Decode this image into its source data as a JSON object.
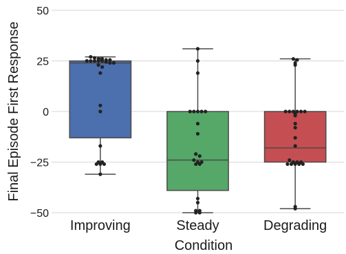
{
  "chart_data": {
    "type": "box",
    "title": "",
    "xlabel": "Condition",
    "ylabel": "Final Episode First Response",
    "categories": [
      "Improving",
      "Steady",
      "Degrading"
    ],
    "ylim": [
      -50,
      50
    ],
    "yticks": [
      50,
      25,
      0,
      -25,
      -50
    ],
    "ytick_labels": [
      "50",
      "25",
      "0",
      "−25",
      "−50"
    ],
    "grid": "horizontal",
    "legend": "none",
    "colors": {
      "Improving": "#4c6fad",
      "Steady": "#55a868",
      "Degrading": "#c44e52",
      "points": "#222222",
      "lines": "#4a4a4a",
      "grid": "#d6d6d6"
    },
    "boxes": [
      {
        "category": "Improving",
        "whislo": -31,
        "q1": -13,
        "med": 24,
        "q3": 25,
        "whishi": 27
      },
      {
        "category": "Steady",
        "whislo": -50,
        "q1": -39,
        "med": -24,
        "q3": 0,
        "whishi": 31
      },
      {
        "category": "Degrading",
        "whislo": -48,
        "q1": -25,
        "med": -18,
        "q3": 0,
        "whishi": 26
      }
    ],
    "points": [
      {
        "category": "Improving",
        "values": [
          27,
          26.5,
          26,
          26,
          25.5,
          25.5,
          25,
          25,
          25,
          25,
          25,
          24.5,
          24,
          24,
          23,
          22,
          19,
          3,
          0,
          -17,
          -25,
          -25,
          -26,
          -26,
          -26,
          -31
        ]
      },
      {
        "category": "Steady",
        "values": [
          31,
          25,
          19,
          0,
          0,
          0,
          0,
          0,
          -6,
          -11,
          -21,
          -22,
          -24,
          -25,
          -25,
          -26,
          -26,
          -43,
          -45,
          -49,
          -49,
          -50,
          -50
        ]
      },
      {
        "category": "Degrading",
        "values": [
          26,
          25.5,
          24,
          23,
          0,
          0,
          0,
          0,
          0,
          0,
          -1,
          -2,
          -6,
          -8,
          -13,
          -17,
          -24,
          -25,
          -25,
          -25,
          -26,
          -26,
          -26,
          -26,
          -26,
          -47,
          -48
        ]
      }
    ]
  }
}
